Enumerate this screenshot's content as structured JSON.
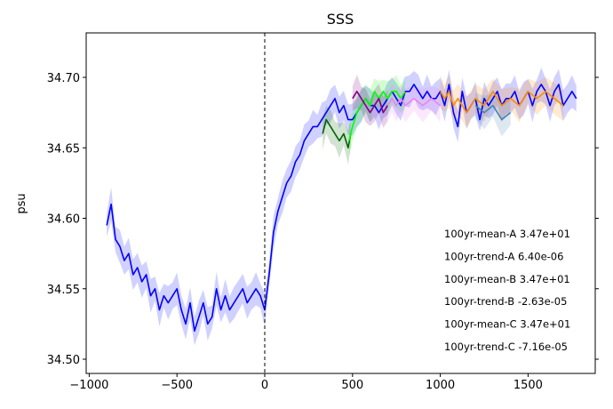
{
  "chart_data": {
    "type": "line",
    "title": "SSS",
    "xlabel": "",
    "ylabel": "psu",
    "xlim": [
      -1000,
      1900
    ],
    "ylim": [
      34.493,
      34.727
    ],
    "xticks": [
      -1000,
      -500,
      0,
      500,
      1000,
      1500
    ],
    "xtick_labels": [
      "−1000",
      "−500",
      "0",
      "500",
      "1000",
      "1500"
    ],
    "yticks": [
      34.5,
      34.55,
      34.6,
      34.65,
      34.7
    ],
    "ytick_labels": [
      "34.50",
      "34.55",
      "34.60",
      "34.65",
      "34.70"
    ],
    "grid": false,
    "vline": {
      "x": 0,
      "style": "dashed",
      "color": "#000000"
    },
    "series": [
      {
        "color": "#0000ff",
        "x": [
          -900,
          -875,
          -850,
          -825,
          -800,
          -775,
          -750,
          -725,
          -700,
          -675,
          -650,
          -625,
          -600,
          -575,
          -550,
          -525,
          -500,
          -475,
          -450,
          -425,
          -400,
          -375,
          -350,
          -325,
          -300,
          -275,
          -250,
          -225,
          -200,
          -175,
          -150,
          -125,
          -100,
          -75,
          -50,
          -25,
          0,
          25,
          50,
          75,
          100,
          125,
          150,
          175,
          200,
          225,
          250,
          275,
          300,
          325,
          350,
          375,
          400,
          425,
          450,
          475,
          500,
          525,
          550,
          575,
          600,
          625,
          650,
          675,
          700,
          725,
          750,
          775,
          800,
          825,
          850,
          875,
          900,
          925,
          950,
          975,
          1000,
          1025,
          1050,
          1075,
          1100,
          1125,
          1150,
          1175,
          1200,
          1225,
          1250,
          1275,
          1300,
          1325,
          1350,
          1375,
          1400,
          1425,
          1450,
          1475,
          1500,
          1525,
          1550,
          1575,
          1600,
          1625,
          1650,
          1675,
          1700,
          1725,
          1750,
          1775
        ],
        "y": [
          34.595,
          34.61,
          34.585,
          34.58,
          34.57,
          34.575,
          34.56,
          34.565,
          34.555,
          34.56,
          34.545,
          34.55,
          34.535,
          34.545,
          34.54,
          34.545,
          34.55,
          34.535,
          34.525,
          34.54,
          34.52,
          34.53,
          34.54,
          34.525,
          34.53,
          34.55,
          34.535,
          34.545,
          34.535,
          34.54,
          34.545,
          34.55,
          34.54,
          34.545,
          34.55,
          34.545,
          34.535,
          34.56,
          34.59,
          34.605,
          34.615,
          34.625,
          34.63,
          34.64,
          34.645,
          34.655,
          34.66,
          34.665,
          34.665,
          34.67,
          34.675,
          34.68,
          34.685,
          34.675,
          34.68,
          34.67,
          34.67,
          34.675,
          34.68,
          34.685,
          34.68,
          34.68,
          34.675,
          34.68,
          34.685,
          34.69,
          34.685,
          34.68,
          34.69,
          34.69,
          34.695,
          34.69,
          34.685,
          34.69,
          34.685,
          34.685,
          34.69,
          34.68,
          34.695,
          34.675,
          34.665,
          34.69,
          34.675,
          34.68,
          34.685,
          34.67,
          34.685,
          34.68,
          34.685,
          34.69,
          34.68,
          34.685,
          34.685,
          34.69,
          34.68,
          34.685,
          34.69,
          34.68,
          34.69,
          34.695,
          34.69,
          34.68,
          34.69,
          34.695,
          34.68,
          34.685,
          34.69,
          34.685
        ]
      },
      {
        "color": "#006400",
        "x": [
          330,
          350,
          375,
          400,
          425,
          450,
          475,
          490
        ],
        "y": [
          34.66,
          34.67,
          34.665,
          34.66,
          34.655,
          34.66,
          34.65,
          34.66
        ]
      },
      {
        "color": "#00ff00",
        "x": [
          480,
          500,
          525,
          550,
          575,
          600,
          625,
          650,
          675,
          700,
          725,
          750,
          775,
          800
        ],
        "y": [
          34.655,
          34.665,
          34.675,
          34.68,
          34.685,
          34.68,
          34.69,
          34.685,
          34.69,
          34.685,
          34.69,
          34.69,
          34.685,
          34.69
        ]
      },
      {
        "color": "#800080",
        "x": [
          500,
          525,
          550,
          575,
          600,
          625,
          650,
          675,
          700
        ],
        "y": [
          34.685,
          34.69,
          34.685,
          34.68,
          34.675,
          34.68,
          34.685,
          34.675,
          34.68
        ]
      },
      {
        "color": "#ee82ee",
        "x": [
          700,
          725,
          750,
          775,
          800,
          850,
          900,
          950,
          1000
        ],
        "y": [
          34.68,
          34.685,
          34.68,
          34.685,
          34.68,
          34.685,
          34.68,
          34.685,
          34.68
        ]
      },
      {
        "color": "#ff8c00",
        "x": [
          1000,
          1025,
          1050,
          1075,
          1100,
          1150,
          1200,
          1250,
          1300,
          1350,
          1400,
          1450,
          1500,
          1550,
          1600,
          1650,
          1700
        ],
        "y": [
          34.69,
          34.685,
          34.69,
          34.68,
          34.685,
          34.675,
          34.685,
          34.68,
          34.69,
          34.68,
          34.685,
          34.68,
          34.69,
          34.685,
          34.69,
          34.685,
          34.68
        ]
      },
      {
        "color": "#4682b4",
        "x": [
          1200,
          1250,
          1300,
          1350,
          1400
        ],
        "y": [
          34.68,
          34.675,
          34.68,
          34.67,
          34.675
        ]
      }
    ],
    "annotations": [
      "100yr-mean-A  3.47e+01",
      "100yr-trend-A  6.40e-06",
      "100yr-mean-B  3.47e+01",
      "100yr-trend-B  -2.63e-05",
      "100yr-mean-C  3.47e+01",
      "100yr-trend-C  -7.16e-05"
    ]
  }
}
